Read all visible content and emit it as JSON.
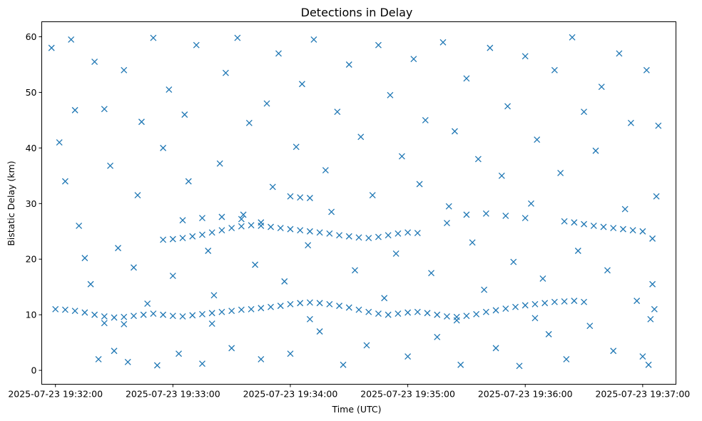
{
  "chart_data": {
    "type": "scatter",
    "title": "Detections in Delay",
    "xlabel": "Time (UTC)",
    "ylabel": "Bistatic Delay (km)",
    "x_ticks": [
      "2025-07-23 19:32:00",
      "2025-07-23 19:33:00",
      "2025-07-23 19:34:00",
      "2025-07-23 19:35:00",
      "2025-07-23 19:36:00",
      "2025-07-23 19:37:00"
    ],
    "xlim": [
      "2025-07-23 19:31:53",
      "2025-07-23 19:37:17"
    ],
    "y_ticks": [
      0,
      10,
      20,
      30,
      40,
      50,
      60
    ],
    "ylim": [
      -2.5,
      62.7
    ],
    "marker": "x",
    "color": "#1f77b4",
    "grid": false,
    "legend": "none",
    "series": [
      {
        "points": [
          [
            "2025-07-23 19:32:00",
            11.0
          ],
          [
            "2025-07-23 19:32:05",
            10.9
          ],
          [
            "2025-07-23 19:32:10",
            10.7
          ],
          [
            "2025-07-23 19:32:15",
            10.4
          ],
          [
            "2025-07-23 19:32:20",
            10.0
          ],
          [
            "2025-07-23 19:32:25",
            9.7
          ],
          [
            "2025-07-23 19:32:30",
            9.5
          ],
          [
            "2025-07-23 19:32:35",
            9.6
          ],
          [
            "2025-07-23 19:32:40",
            9.8
          ],
          [
            "2025-07-23 19:32:45",
            10.0
          ],
          [
            "2025-07-23 19:32:50",
            10.2
          ],
          [
            "2025-07-23 19:32:55",
            10.0
          ],
          [
            "2025-07-23 19:33:00",
            9.8
          ],
          [
            "2025-07-23 19:33:05",
            9.7
          ],
          [
            "2025-07-23 19:33:10",
            9.9
          ],
          [
            "2025-07-23 19:33:15",
            10.1
          ],
          [
            "2025-07-23 19:33:20",
            10.3
          ],
          [
            "2025-07-23 19:33:25",
            10.5
          ],
          [
            "2025-07-23 19:33:30",
            10.7
          ],
          [
            "2025-07-23 19:33:35",
            10.9
          ],
          [
            "2025-07-23 19:33:40",
            11.0
          ],
          [
            "2025-07-23 19:33:45",
            11.2
          ],
          [
            "2025-07-23 19:33:50",
            11.4
          ],
          [
            "2025-07-23 19:33:55",
            11.6
          ],
          [
            "2025-07-23 19:34:00",
            11.9
          ],
          [
            "2025-07-23 19:34:05",
            12.1
          ],
          [
            "2025-07-23 19:34:10",
            12.2
          ],
          [
            "2025-07-23 19:34:15",
            12.1
          ],
          [
            "2025-07-23 19:34:20",
            11.9
          ],
          [
            "2025-07-23 19:34:25",
            11.6
          ],
          [
            "2025-07-23 19:34:30",
            11.3
          ],
          [
            "2025-07-23 19:34:35",
            10.9
          ],
          [
            "2025-07-23 19:34:40",
            10.5
          ],
          [
            "2025-07-23 19:34:45",
            10.2
          ],
          [
            "2025-07-23 19:34:50",
            10.0
          ],
          [
            "2025-07-23 19:34:55",
            10.2
          ],
          [
            "2025-07-23 19:35:00",
            10.4
          ],
          [
            "2025-07-23 19:35:05",
            10.5
          ],
          [
            "2025-07-23 19:35:10",
            10.3
          ],
          [
            "2025-07-23 19:35:15",
            10.0
          ],
          [
            "2025-07-23 19:35:20",
            9.7
          ],
          [
            "2025-07-23 19:35:25",
            9.6
          ],
          [
            "2025-07-23 19:35:30",
            9.8
          ],
          [
            "2025-07-23 19:35:35",
            10.1
          ],
          [
            "2025-07-23 19:35:40",
            10.5
          ],
          [
            "2025-07-23 19:35:45",
            10.8
          ],
          [
            "2025-07-23 19:35:50",
            11.1
          ],
          [
            "2025-07-23 19:35:55",
            11.4
          ],
          [
            "2025-07-23 19:36:00",
            11.7
          ],
          [
            "2025-07-23 19:36:05",
            11.9
          ],
          [
            "2025-07-23 19:36:10",
            12.1
          ],
          [
            "2025-07-23 19:36:15",
            12.3
          ],
          [
            "2025-07-23 19:36:20",
            12.4
          ],
          [
            "2025-07-23 19:36:25",
            12.5
          ],
          [
            "2025-07-23 19:36:30",
            12.3
          ],
          [
            "2025-07-23 19:32:25",
            8.5
          ],
          [
            "2025-07-23 19:32:35",
            8.3
          ],
          [
            "2025-07-23 19:33:20",
            8.4
          ],
          [
            "2025-07-23 19:34:10",
            9.2
          ],
          [
            "2025-07-23 19:35:25",
            9.0
          ],
          [
            "2025-07-23 19:36:05",
            9.4
          ],
          [
            "2025-07-23 19:32:55",
            23.5
          ],
          [
            "2025-07-23 19:33:00",
            23.6
          ],
          [
            "2025-07-23 19:33:05",
            23.8
          ],
          [
            "2025-07-23 19:33:10",
            24.1
          ],
          [
            "2025-07-23 19:33:15",
            24.4
          ],
          [
            "2025-07-23 19:33:20",
            24.8
          ],
          [
            "2025-07-23 19:33:25",
            25.2
          ],
          [
            "2025-07-23 19:33:30",
            25.6
          ],
          [
            "2025-07-23 19:33:35",
            25.9
          ],
          [
            "2025-07-23 19:33:40",
            26.1
          ],
          [
            "2025-07-23 19:33:45",
            26.0
          ],
          [
            "2025-07-23 19:33:50",
            25.8
          ],
          [
            "2025-07-23 19:33:55",
            25.6
          ],
          [
            "2025-07-23 19:34:00",
            25.4
          ],
          [
            "2025-07-23 19:34:05",
            25.2
          ],
          [
            "2025-07-23 19:34:10",
            25.0
          ],
          [
            "2025-07-23 19:34:15",
            24.8
          ],
          [
            "2025-07-23 19:34:20",
            24.6
          ],
          [
            "2025-07-23 19:34:25",
            24.3
          ],
          [
            "2025-07-23 19:34:30",
            24.1
          ],
          [
            "2025-07-23 19:34:35",
            23.9
          ],
          [
            "2025-07-23 19:34:40",
            23.8
          ],
          [
            "2025-07-23 19:34:45",
            24.0
          ],
          [
            "2025-07-23 19:34:50",
            24.3
          ],
          [
            "2025-07-23 19:34:55",
            24.6
          ],
          [
            "2025-07-23 19:35:00",
            24.8
          ],
          [
            "2025-07-23 19:35:05",
            24.7
          ],
          [
            "2025-07-23 19:33:05",
            27.0
          ],
          [
            "2025-07-23 19:33:15",
            27.4
          ],
          [
            "2025-07-23 19:33:25",
            27.6
          ],
          [
            "2025-07-23 19:33:35",
            27.2
          ],
          [
            "2025-07-23 19:33:45",
            26.6
          ],
          [
            "2025-07-23 19:34:00",
            31.3
          ],
          [
            "2025-07-23 19:34:05",
            31.1
          ],
          [
            "2025-07-23 19:34:10",
            31.0
          ],
          [
            "2025-07-23 19:35:20",
            26.5
          ],
          [
            "2025-07-23 19:35:30",
            28.0
          ],
          [
            "2025-07-23 19:35:40",
            28.2
          ],
          [
            "2025-07-23 19:35:50",
            27.8
          ],
          [
            "2025-07-23 19:36:00",
            27.4
          ],
          [
            "2025-07-23 19:36:20",
            26.8
          ],
          [
            "2025-07-23 19:36:25",
            26.6
          ],
          [
            "2025-07-23 19:36:30",
            26.3
          ],
          [
            "2025-07-23 19:36:35",
            26.0
          ],
          [
            "2025-07-23 19:36:40",
            25.8
          ],
          [
            "2025-07-23 19:36:45",
            25.6
          ],
          [
            "2025-07-23 19:36:50",
            25.4
          ],
          [
            "2025-07-23 19:36:55",
            25.2
          ],
          [
            "2025-07-23 19:37:00",
            25.0
          ],
          [
            "2025-07-23 19:37:05",
            23.7
          ],
          [
            "2025-07-23 19:31:58",
            58.0
          ],
          [
            "2025-07-23 19:32:02",
            41.0
          ],
          [
            "2025-07-23 19:32:05",
            34.0
          ],
          [
            "2025-07-23 19:32:08",
            59.5
          ],
          [
            "2025-07-23 19:32:10",
            46.8
          ],
          [
            "2025-07-23 19:32:12",
            26.0
          ],
          [
            "2025-07-23 19:32:15",
            20.2
          ],
          [
            "2025-07-23 19:32:18",
            15.5
          ],
          [
            "2025-07-23 19:32:20",
            55.5
          ],
          [
            "2025-07-23 19:32:22",
            2.0
          ],
          [
            "2025-07-23 19:32:25",
            47.0
          ],
          [
            "2025-07-23 19:32:28",
            36.8
          ],
          [
            "2025-07-23 19:32:30",
            3.5
          ],
          [
            "2025-07-23 19:32:32",
            22.0
          ],
          [
            "2025-07-23 19:32:35",
            54.0
          ],
          [
            "2025-07-23 19:32:37",
            1.5
          ],
          [
            "2025-07-23 19:32:40",
            18.5
          ],
          [
            "2025-07-23 19:32:42",
            31.5
          ],
          [
            "2025-07-23 19:32:44",
            44.7
          ],
          [
            "2025-07-23 19:32:47",
            12.0
          ],
          [
            "2025-07-23 19:32:50",
            59.8
          ],
          [
            "2025-07-23 19:32:52",
            0.9
          ],
          [
            "2025-07-23 19:32:55",
            40.0
          ],
          [
            "2025-07-23 19:32:58",
            50.5
          ],
          [
            "2025-07-23 19:33:00",
            17.0
          ],
          [
            "2025-07-23 19:33:03",
            3.0
          ],
          [
            "2025-07-23 19:33:06",
            46.0
          ],
          [
            "2025-07-23 19:33:08",
            34.0
          ],
          [
            "2025-07-23 19:33:12",
            58.5
          ],
          [
            "2025-07-23 19:33:15",
            1.2
          ],
          [
            "2025-07-23 19:33:18",
            21.5
          ],
          [
            "2025-07-23 19:33:21",
            13.5
          ],
          [
            "2025-07-23 19:33:24",
            37.2
          ],
          [
            "2025-07-23 19:33:27",
            53.5
          ],
          [
            "2025-07-23 19:33:30",
            4.0
          ],
          [
            "2025-07-23 19:33:33",
            59.8
          ],
          [
            "2025-07-23 19:33:36",
            28.0
          ],
          [
            "2025-07-23 19:33:39",
            44.5
          ],
          [
            "2025-07-23 19:33:42",
            19.0
          ],
          [
            "2025-07-23 19:33:45",
            2.0
          ],
          [
            "2025-07-23 19:33:48",
            48.0
          ],
          [
            "2025-07-23 19:33:51",
            33.0
          ],
          [
            "2025-07-23 19:33:54",
            57.0
          ],
          [
            "2025-07-23 19:33:57",
            16.0
          ],
          [
            "2025-07-23 19:34:00",
            3.0
          ],
          [
            "2025-07-23 19:34:03",
            40.2
          ],
          [
            "2025-07-23 19:34:06",
            51.5
          ],
          [
            "2025-07-23 19:34:09",
            22.5
          ],
          [
            "2025-07-23 19:34:12",
            59.5
          ],
          [
            "2025-07-23 19:34:15",
            7.0
          ],
          [
            "2025-07-23 19:34:18",
            36.0
          ],
          [
            "2025-07-23 19:34:21",
            28.5
          ],
          [
            "2025-07-23 19:34:24",
            46.5
          ],
          [
            "2025-07-23 19:34:27",
            1.0
          ],
          [
            "2025-07-23 19:34:30",
            55.0
          ],
          [
            "2025-07-23 19:34:33",
            18.0
          ],
          [
            "2025-07-23 19:34:36",
            42.0
          ],
          [
            "2025-07-23 19:34:39",
            4.5
          ],
          [
            "2025-07-23 19:34:42",
            31.5
          ],
          [
            "2025-07-23 19:34:45",
            58.5
          ],
          [
            "2025-07-23 19:34:48",
            13.0
          ],
          [
            "2025-07-23 19:34:51",
            49.5
          ],
          [
            "2025-07-23 19:34:54",
            21.0
          ],
          [
            "2025-07-23 19:34:57",
            38.5
          ],
          [
            "2025-07-23 19:35:00",
            2.5
          ],
          [
            "2025-07-23 19:35:03",
            56.0
          ],
          [
            "2025-07-23 19:35:06",
            33.5
          ],
          [
            "2025-07-23 19:35:09",
            45.0
          ],
          [
            "2025-07-23 19:35:12",
            17.5
          ],
          [
            "2025-07-23 19:35:15",
            6.0
          ],
          [
            "2025-07-23 19:35:18",
            59.0
          ],
          [
            "2025-07-23 19:35:21",
            29.5
          ],
          [
            "2025-07-23 19:35:24",
            43.0
          ],
          [
            "2025-07-23 19:35:27",
            1.0
          ],
          [
            "2025-07-23 19:35:30",
            52.5
          ],
          [
            "2025-07-23 19:35:33",
            23.0
          ],
          [
            "2025-07-23 19:35:36",
            38.0
          ],
          [
            "2025-07-23 19:35:39",
            14.5
          ],
          [
            "2025-07-23 19:35:42",
            58.0
          ],
          [
            "2025-07-23 19:35:45",
            4.0
          ],
          [
            "2025-07-23 19:35:48",
            35.0
          ],
          [
            "2025-07-23 19:35:51",
            47.5
          ],
          [
            "2025-07-23 19:35:54",
            19.5
          ],
          [
            "2025-07-23 19:35:57",
            0.8
          ],
          [
            "2025-07-23 19:36:00",
            56.5
          ],
          [
            "2025-07-23 19:36:03",
            30.0
          ],
          [
            "2025-07-23 19:36:06",
            41.5
          ],
          [
            "2025-07-23 19:36:09",
            16.5
          ],
          [
            "2025-07-23 19:36:12",
            6.5
          ],
          [
            "2025-07-23 19:36:15",
            54.0
          ],
          [
            "2025-07-23 19:36:18",
            35.5
          ],
          [
            "2025-07-23 19:36:21",
            2.0
          ],
          [
            "2025-07-23 19:36:24",
            59.9
          ],
          [
            "2025-07-23 19:36:27",
            21.5
          ],
          [
            "2025-07-23 19:36:30",
            46.5
          ],
          [
            "2025-07-23 19:36:33",
            8.0
          ],
          [
            "2025-07-23 19:36:36",
            39.5
          ],
          [
            "2025-07-23 19:36:39",
            51.0
          ],
          [
            "2025-07-23 19:36:42",
            18.0
          ],
          [
            "2025-07-23 19:36:45",
            3.5
          ],
          [
            "2025-07-23 19:36:48",
            57.0
          ],
          [
            "2025-07-23 19:36:51",
            29.0
          ],
          [
            "2025-07-23 19:36:54",
            44.5
          ],
          [
            "2025-07-23 19:36:57",
            12.5
          ],
          [
            "2025-07-23 19:37:00",
            2.5
          ],
          [
            "2025-07-23 19:37:02",
            54.0
          ],
          [
            "2025-07-23 19:37:03",
            1.0
          ],
          [
            "2025-07-23 19:37:05",
            15.5
          ],
          [
            "2025-07-23 19:37:07",
            31.3
          ],
          [
            "2025-07-23 19:37:08",
            44.0
          ],
          [
            "2025-07-23 19:37:06",
            11.0
          ],
          [
            "2025-07-23 19:37:04",
            9.2
          ]
        ]
      }
    ]
  }
}
